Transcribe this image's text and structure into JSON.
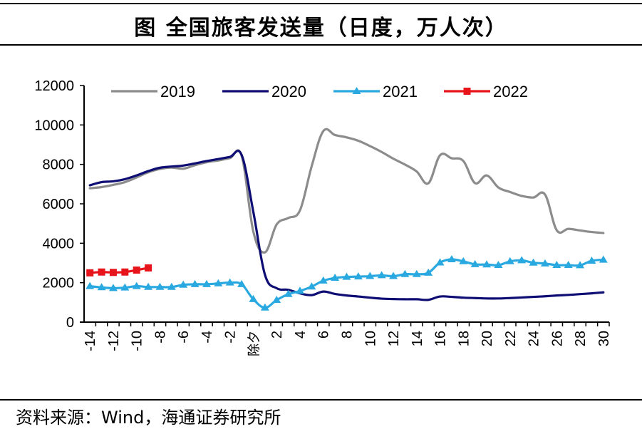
{
  "title": "图  全国旅客发送量（日度，万人次）",
  "source": "资料来源：Wind，海通证券研究所",
  "chart_data": {
    "type": "line",
    "title": "全国旅客发送量（日度，万人次）",
    "xlabel": "",
    "ylabel": "",
    "ylim": [
      0,
      12000
    ],
    "yticks": [
      0,
      2000,
      4000,
      6000,
      8000,
      10000,
      12000
    ],
    "ytick_labels": [
      "0",
      "2000",
      "4000",
      "6000",
      "8000",
      "10000",
      "12000"
    ],
    "grid": false,
    "legend_position": "top",
    "categories": [
      "-14",
      "-13",
      "-12",
      "-11",
      "-10",
      "-9",
      "-8",
      "-7",
      "-6",
      "-5",
      "-4",
      "-3",
      "-2",
      "-1",
      "除夕",
      "1",
      "2",
      "3",
      "4",
      "5",
      "6",
      "7",
      "8",
      "9",
      "10",
      "11",
      "12",
      "13",
      "14",
      "15",
      "16",
      "17",
      "18",
      "19",
      "20",
      "21",
      "22",
      "23",
      "24",
      "25",
      "26",
      "27",
      "28",
      "29",
      "30"
    ],
    "xtick_labels_shown": [
      "-14",
      "-12",
      "-10",
      "-8",
      "-6",
      "-4",
      "-2",
      "除夕",
      "2",
      "4",
      "6",
      "8",
      "10",
      "12",
      "14",
      "16",
      "18",
      "20",
      "22",
      "24",
      "26",
      "28",
      "30"
    ],
    "series": [
      {
        "name": "2019",
        "color": "#8c8c8c",
        "marker": "none",
        "values": [
          6790,
          6850,
          6960,
          7100,
          7340,
          7600,
          7770,
          7840,
          7780,
          7960,
          8110,
          8200,
          8320,
          8440,
          4600,
          3540,
          4950,
          5280,
          5670,
          7900,
          9690,
          9490,
          9370,
          9200,
          8930,
          8630,
          8290,
          7990,
          7640,
          7040,
          8460,
          8310,
          8170,
          7050,
          7440,
          6830,
          6600,
          6400,
          6320,
          6470,
          4660,
          4730,
          4650,
          4570,
          4520
        ]
      },
      {
        "name": "2020",
        "color": "#0d0d73",
        "marker": "none",
        "values": [
          6940,
          7100,
          7140,
          7250,
          7440,
          7660,
          7830,
          7890,
          7940,
          8050,
          8170,
          8270,
          8380,
          8480,
          5600,
          2400,
          1720,
          1640,
          1460,
          1370,
          1550,
          1430,
          1350,
          1300,
          1240,
          1190,
          1170,
          1160,
          1160,
          1130,
          1300,
          1280,
          1240,
          1220,
          1200,
          1200,
          1220,
          1250,
          1280,
          1310,
          1350,
          1380,
          1420,
          1460,
          1510
        ]
      },
      {
        "name": "2021",
        "color": "#2aa9e0",
        "marker": "triangle",
        "values": [
          1820,
          1760,
          1720,
          1750,
          1820,
          1780,
          1780,
          1780,
          1890,
          1920,
          1920,
          1960,
          2000,
          1920,
          1160,
          730,
          1120,
          1420,
          1580,
          1800,
          2100,
          2240,
          2290,
          2310,
          2330,
          2370,
          2330,
          2430,
          2430,
          2500,
          3020,
          3180,
          3080,
          2930,
          2920,
          2890,
          3080,
          3130,
          3010,
          2970,
          2890,
          2890,
          2880,
          3110,
          3160
        ]
      },
      {
        "name": "2022",
        "color": "#e8141c",
        "marker": "square",
        "values": [
          2500,
          2540,
          2520,
          2540,
          2640,
          2750
        ]
      }
    ]
  }
}
